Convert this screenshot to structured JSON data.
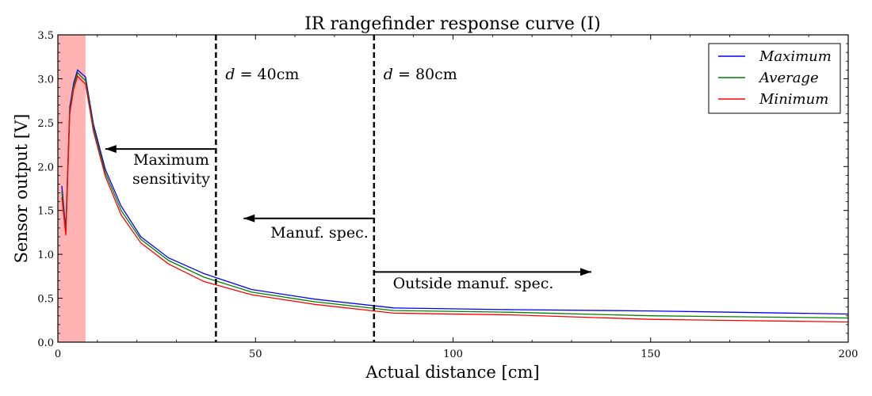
{
  "chart_data": {
    "type": "line",
    "title": "IR rangefinder response curve (I)",
    "xlabel": "Actual distance [cm]",
    "ylabel": "Sensor output  [V]",
    "xlim": [
      0,
      200
    ],
    "ylim": [
      0.0,
      3.5
    ],
    "xticks": [
      0,
      50,
      100,
      150,
      200
    ],
    "xtick_labels": [
      "0",
      "50",
      "100",
      "150",
      "200"
    ],
    "yticks": [
      0.0,
      0.5,
      1.0,
      1.5,
      2.0,
      2.5,
      3.0,
      3.5
    ],
    "ytick_labels": [
      "0.0",
      "0.5",
      "1.0",
      "1.5",
      "2.0",
      "2.5",
      "3.0",
      "3.5"
    ],
    "grid": false,
    "legend_position": "top-right",
    "series": [
      {
        "name": "Maximum",
        "color": "#0000ff",
        "x": [
          1,
          2,
          3,
          4,
          5,
          6,
          7,
          9,
          12,
          16,
          21,
          28,
          37,
          49,
          65,
          85,
          115,
          150,
          200
        ],
        "y": [
          1.78,
          1.28,
          2.68,
          2.95,
          3.1,
          3.06,
          3.02,
          2.48,
          1.97,
          1.55,
          1.2,
          0.96,
          0.78,
          0.6,
          0.49,
          0.39,
          0.37,
          0.355,
          0.32
        ]
      },
      {
        "name": "Average",
        "color": "#008000",
        "x": [
          1,
          2,
          3,
          4,
          5,
          6,
          7,
          9,
          12,
          16,
          21,
          28,
          37,
          49,
          65,
          85,
          115,
          150,
          200
        ],
        "y": [
          1.72,
          1.25,
          2.64,
          2.92,
          3.07,
          3.02,
          2.98,
          2.44,
          1.93,
          1.5,
          1.17,
          0.93,
          0.74,
          0.57,
          0.46,
          0.36,
          0.34,
          0.3,
          0.275
        ]
      },
      {
        "name": "Minimum",
        "color": "#ff0000",
        "x": [
          1,
          2,
          3,
          4,
          5,
          6,
          7,
          9,
          12,
          16,
          21,
          28,
          37,
          49,
          65,
          85,
          115,
          150,
          200
        ],
        "y": [
          1.65,
          1.22,
          2.6,
          2.88,
          3.03,
          2.98,
          2.94,
          2.4,
          1.89,
          1.45,
          1.13,
          0.89,
          0.69,
          0.54,
          0.43,
          0.33,
          0.31,
          0.26,
          0.23
        ]
      }
    ],
    "shaded_region": {
      "x_from": 0,
      "x_to": 7,
      "color": "#ffb3b3"
    },
    "vlines": [
      {
        "x": 40,
        "label": "d = 40cm",
        "label_var": "d",
        "label_rest": " = 40cm"
      },
      {
        "x": 80,
        "label": "d = 80cm",
        "label_var": "d",
        "label_rest": " = 80cm"
      }
    ],
    "annotations": [
      {
        "text_lines": [
          "Maximum",
          "sensitivity"
        ],
        "arrow_from_x": 40,
        "arrow_to_x": 12,
        "arrow_y": 2.2
      },
      {
        "text_lines": [
          "Manuf. spec."
        ],
        "arrow_from_x": 80,
        "arrow_to_x": 47,
        "arrow_y": 1.41
      },
      {
        "text_lines": [
          "Outside manuf. spec."
        ],
        "arrow_from_x": 80,
        "arrow_to_x": 135,
        "arrow_y": 0.8
      }
    ]
  }
}
